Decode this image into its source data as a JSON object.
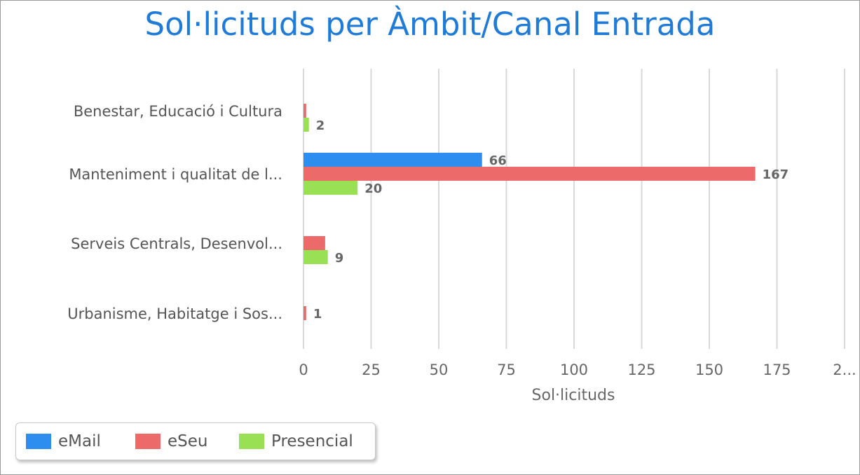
{
  "chart_data": {
    "type": "bar",
    "orientation": "horizontal",
    "title": "Sol·licituds per Àmbit/Canal Entrada",
    "xlabel": "Sol·licituds",
    "ylabel": "",
    "xlim": [
      0,
      200
    ],
    "x_ticks": [
      "0",
      "25",
      "50",
      "75",
      "100",
      "125",
      "150",
      "175",
      "2..."
    ],
    "grid": true,
    "legend_position": "bottom-left",
    "categories": [
      "Benestar, Educació i Cultura",
      "Manteniment i qualitat de l...",
      "Serveis Centrals, Desenvol...",
      "Urbanisme, Habitatge i Sos..."
    ],
    "series": [
      {
        "name": "eMail",
        "color": "#2e8ef0",
        "values": [
          0,
          66,
          0,
          0
        ]
      },
      {
        "name": "eSeu",
        "color": "#ec6a6a",
        "values": [
          1,
          167,
          8,
          1
        ]
      },
      {
        "name": "Presencial",
        "color": "#99e055",
        "values": [
          2,
          20,
          9,
          0
        ]
      }
    ],
    "data_labels": [
      [
        "",
        "66",
        "",
        ""
      ],
      [
        "",
        "167",
        "",
        "1"
      ],
      [
        "2",
        "20",
        "9",
        ""
      ]
    ]
  }
}
